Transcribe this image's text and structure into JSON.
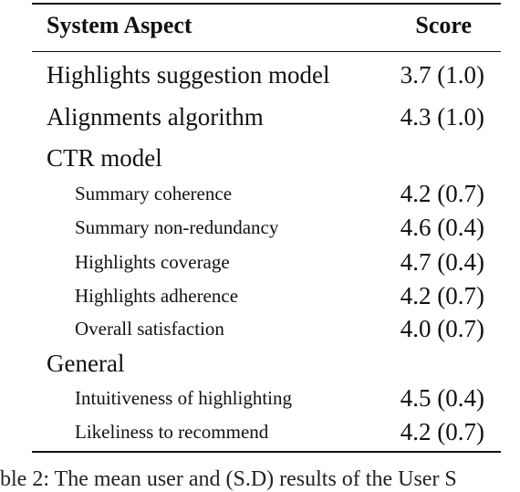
{
  "table": {
    "header": {
      "aspect": "System Aspect",
      "score": "Score"
    },
    "rows": [
      {
        "aspect": "Highlights suggestion model",
        "score": "3.7 (1.0)",
        "level": "main"
      },
      {
        "aspect": "Alignments algorithm",
        "score": "4.3 (1.0)",
        "level": "main"
      },
      {
        "aspect": "CTR model",
        "score": "",
        "level": "group"
      },
      {
        "aspect": "Summary coherence",
        "score": "4.2 (0.7)",
        "level": "sub"
      },
      {
        "aspect": "Summary non-redundancy",
        "score": "4.6 (0.4)",
        "level": "sub"
      },
      {
        "aspect": "Highlights coverage",
        "score": "4.7 (0.4)",
        "level": "sub"
      },
      {
        "aspect": "Highlights adherence",
        "score": "4.2 (0.7)",
        "level": "sub"
      },
      {
        "aspect": "Overall satisfaction",
        "score": "4.0 (0.7)",
        "level": "sub"
      },
      {
        "aspect": "General",
        "score": "",
        "level": "group"
      },
      {
        "aspect": "Intuitiveness of highlighting",
        "score": "4.5 (0.4)",
        "level": "sub"
      },
      {
        "aspect": "Likeliness to recommend",
        "score": "4.2 (0.7)",
        "level": "sub"
      }
    ]
  },
  "caption": "ble 2: The mean user and (S.D) results of the User S"
}
